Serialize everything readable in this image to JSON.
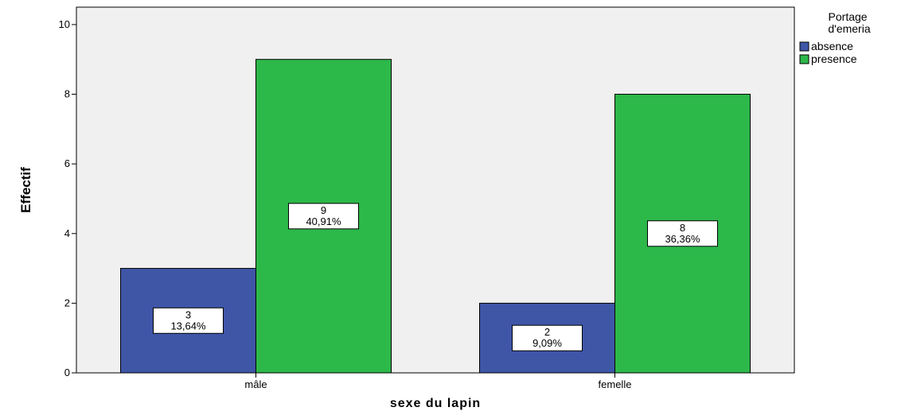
{
  "chart_data": {
    "type": "bar",
    "title": "",
    "xlabel": "sexe du lapin",
    "ylabel": "Effectif",
    "categories": [
      "mâle",
      "femelle"
    ],
    "series": [
      {
        "name": "absence",
        "color": "#3f56a7",
        "values": [
          3,
          2
        ],
        "data_labels": [
          "3|13,64%",
          "2|9,09%"
        ]
      },
      {
        "name": "presence",
        "color": "#2db84a",
        "values": [
          9,
          8
        ],
        "data_labels": [
          "9|40,91%",
          "8|36,36%"
        ]
      }
    ],
    "ylim": [
      0,
      10.5
    ],
    "yticks": [
      "0",
      "2",
      "4",
      "6",
      "8",
      "10"
    ],
    "grid": false,
    "plot_background": "#f0f0f0",
    "legend": {
      "title": "Portage d'emeria",
      "placement": "right"
    }
  }
}
